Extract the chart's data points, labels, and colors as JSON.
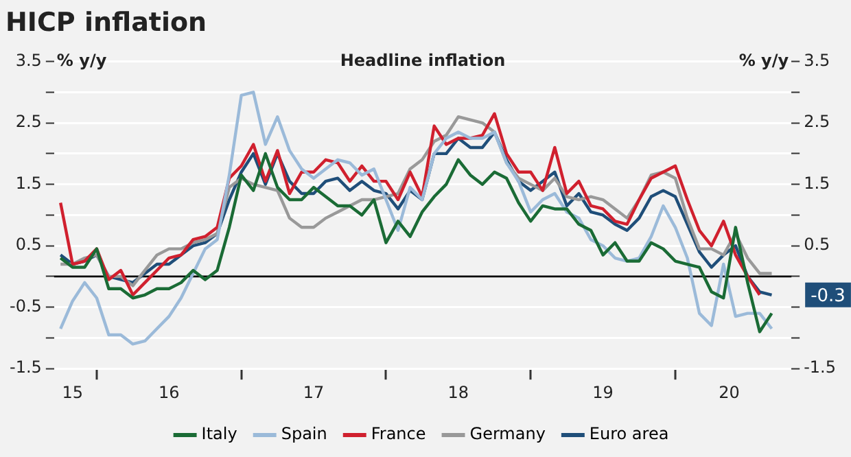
{
  "chart_data": {
    "type": "line",
    "title": "HICP inflation",
    "subtitle": "Headline inflation",
    "ylabel": "% y/y",
    "y2label": "% y/y",
    "x": [
      "2015-10",
      "2015-11",
      "2015-12",
      "2016-01",
      "2016-02",
      "2016-03",
      "2016-04",
      "2016-05",
      "2016-06",
      "2016-07",
      "2016-08",
      "2016-09",
      "2016-10",
      "2016-11",
      "2016-12",
      "2017-01",
      "2017-02",
      "2017-03",
      "2017-04",
      "2017-05",
      "2017-06",
      "2017-07",
      "2017-08",
      "2017-09",
      "2017-10",
      "2017-11",
      "2017-12",
      "2018-01",
      "2018-02",
      "2018-03",
      "2018-04",
      "2018-05",
      "2018-06",
      "2018-07",
      "2018-08",
      "2018-09",
      "2018-10",
      "2018-11",
      "2018-12",
      "2019-01",
      "2019-02",
      "2019-03",
      "2019-04",
      "2019-05",
      "2019-06",
      "2019-07",
      "2019-08",
      "2019-09",
      "2019-10",
      "2019-11",
      "2019-12",
      "2020-01",
      "2020-02",
      "2020-03",
      "2020-04",
      "2020-05",
      "2020-06",
      "2020-07",
      "2020-08",
      "2020-09"
    ],
    "series": [
      {
        "name": "Italy",
        "color": "#1a6b35",
        "values": [
          0.3,
          0.15,
          0.15,
          0.45,
          -0.2,
          -0.2,
          -0.35,
          -0.3,
          -0.2,
          -0.2,
          -0.1,
          0.1,
          -0.05,
          0.1,
          0.8,
          1.65,
          1.4,
          2.0,
          1.45,
          1.25,
          1.25,
          1.45,
          1.3,
          1.15,
          1.15,
          1.0,
          1.25,
          0.55,
          0.9,
          0.65,
          1.05,
          1.3,
          1.5,
          1.9,
          1.65,
          1.5,
          1.7,
          1.6,
          1.2,
          0.9,
          1.15,
          1.1,
          1.1,
          0.85,
          0.75,
          0.35,
          0.55,
          0.25,
          0.25,
          0.55,
          0.45,
          0.25,
          0.2,
          0.15,
          -0.25,
          -0.35,
          0.8,
          -0.1,
          -0.9,
          -0.6
        ]
      },
      {
        "name": "Spain",
        "color": "#9bbad9",
        "values": [
          -0.85,
          -0.4,
          -0.1,
          -0.35,
          -0.95,
          -0.95,
          -1.1,
          -1.05,
          -0.85,
          -0.65,
          -0.35,
          0.05,
          0.45,
          0.6,
          1.65,
          2.95,
          3.0,
          2.15,
          2.6,
          2.05,
          1.75,
          1.6,
          1.75,
          1.9,
          1.85,
          1.65,
          1.75,
          1.25,
          0.75,
          1.45,
          1.25,
          2.0,
          2.25,
          2.35,
          2.25,
          2.25,
          2.35,
          1.85,
          1.55,
          1.05,
          1.25,
          1.35,
          1.05,
          0.95,
          0.6,
          0.5,
          0.3,
          0.25,
          0.3,
          0.65,
          1.15,
          0.8,
          0.3,
          -0.6,
          -0.8,
          0.2,
          -0.65,
          -0.6,
          -0.6,
          -0.85
        ]
      },
      {
        "name": "France",
        "color": "#d0202e",
        "values": [
          1.2,
          0.2,
          0.25,
          0.45,
          -0.05,
          0.1,
          -0.3,
          -0.1,
          0.1,
          0.3,
          0.35,
          0.6,
          0.65,
          0.8,
          1.6,
          1.8,
          2.15,
          1.55,
          2.05,
          1.35,
          1.7,
          1.7,
          1.9,
          1.85,
          1.55,
          1.8,
          1.55,
          1.55,
          1.25,
          1.7,
          1.3,
          2.45,
          2.15,
          2.25,
          2.25,
          2.3,
          2.65,
          2.0,
          1.7,
          1.7,
          1.4,
          2.1,
          1.35,
          1.55,
          1.15,
          1.1,
          0.9,
          0.85,
          1.25,
          1.6,
          1.7,
          1.8,
          1.25,
          0.75,
          0.5,
          0.9,
          0.35,
          0.0,
          -0.3,
          null
        ]
      },
      {
        "name": "Germany",
        "color": "#999999",
        "values": [
          0.2,
          0.2,
          0.3,
          0.35,
          0.0,
          0.0,
          -0.15,
          0.1,
          0.35,
          0.45,
          0.45,
          0.55,
          0.6,
          0.7,
          1.45,
          1.6,
          1.5,
          1.45,
          1.4,
          0.95,
          0.8,
          0.8,
          0.95,
          1.05,
          1.15,
          1.25,
          1.25,
          1.3,
          1.35,
          1.75,
          1.9,
          2.2,
          2.3,
          2.6,
          2.55,
          2.5,
          2.35,
          1.85,
          1.6,
          1.5,
          1.4,
          1.6,
          1.3,
          1.25,
          1.3,
          1.25,
          1.1,
          0.95,
          1.25,
          1.65,
          1.7,
          1.6,
          0.95,
          0.45,
          0.45,
          0.35,
          0.7,
          0.3,
          0.05,
          0.05
        ]
      },
      {
        "name": "Euro area",
        "color": "#1f4e79",
        "values": [
          0.35,
          0.2,
          0.25,
          0.35,
          0.0,
          -0.05,
          -0.1,
          0.05,
          0.2,
          0.2,
          0.35,
          0.5,
          0.55,
          0.7,
          1.25,
          1.7,
          2.0,
          1.5,
          2.0,
          1.55,
          1.35,
          1.35,
          1.55,
          1.6,
          1.4,
          1.55,
          1.4,
          1.35,
          1.1,
          1.4,
          1.25,
          2.0,
          2.0,
          2.25,
          2.1,
          2.1,
          2.35,
          1.9,
          1.55,
          1.4,
          1.55,
          1.7,
          1.15,
          1.35,
          1.05,
          1.0,
          0.85,
          0.75,
          0.95,
          1.3,
          1.4,
          1.3,
          0.85,
          0.4,
          0.15,
          0.35,
          0.5,
          0.0,
          -0.25,
          -0.3
        ]
      }
    ],
    "xlim": [
      "2015-09-15",
      "2020-10-20"
    ],
    "xticks": [
      {
        "value": "2015-11",
        "label": "15"
      },
      {
        "value": "2016-01",
        "label": null
      },
      {
        "value": "2016-07",
        "label": "16"
      },
      {
        "value": "2017-01",
        "label": null
      },
      {
        "value": "2017-07",
        "label": "17"
      },
      {
        "value": "2018-01",
        "label": null
      },
      {
        "value": "2018-07",
        "label": "18"
      },
      {
        "value": "2019-01",
        "label": null
      },
      {
        "value": "2019-07",
        "label": "19"
      },
      {
        "value": "2020-01",
        "label": null
      },
      {
        "value": "2020-05-15",
        "label": "20"
      }
    ],
    "ylim": [
      -1.5,
      3.5
    ],
    "yticks": [
      -1.5,
      {
        "value": -1,
        "label": null
      },
      -0.5,
      {
        "value": 0,
        "label": null
      },
      0.5,
      {
        "value": 1,
        "label": null
      },
      1.5,
      {
        "value": 2,
        "label": null
      },
      2.5,
      {
        "value": 3,
        "label": null
      },
      3.5
    ],
    "y2lim": [
      -1.5,
      3.5
    ],
    "y2ticks": [
      -1.5,
      {
        "value": -1,
        "label": null
      },
      {
        "value": -0.5,
        "label": null
      },
      {
        "value": 0,
        "label": null
      },
      0.5,
      {
        "value": 1,
        "label": null
      },
      1.5,
      {
        "value": 2,
        "label": null
      },
      2.5,
      {
        "value": 3,
        "label": null
      },
      3.5
    ],
    "ref_lines": [
      {
        "axis": "y",
        "value": 0,
        "color": "#000000"
      }
    ],
    "annotations": [
      {
        "text": "-0.3",
        "x": "2020-09",
        "y": -0.3
      }
    ],
    "grid": "y",
    "legend": "bottom",
    "marker": "none",
    "line_style": "solid"
  }
}
